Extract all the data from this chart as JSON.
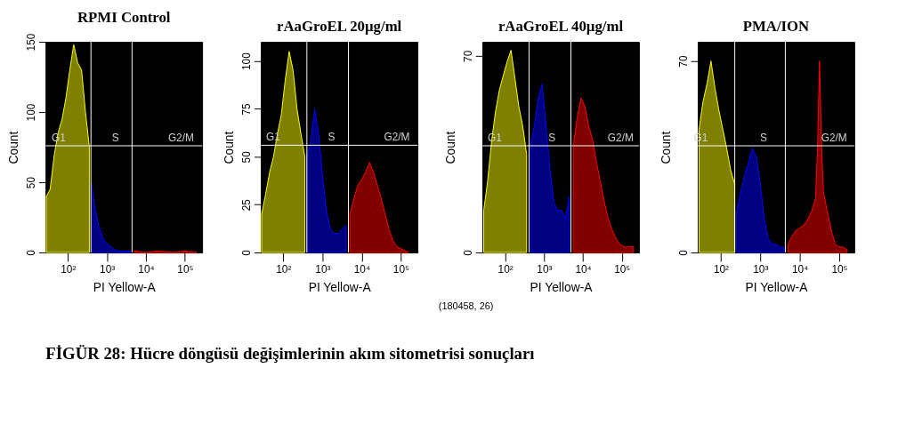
{
  "chart_data": [
    {
      "type": "area",
      "title": "RPMI Control",
      "xlabel": "PI Yellow-A",
      "ylabel": "Count",
      "log": "x",
      "grid": false,
      "annotations": [
        {
          "text": "G1",
          "x": 58,
          "y": 76
        },
        {
          "text": "S",
          "x": 1660,
          "y": 76
        },
        {
          "text": "G2/M",
          "x": 79000,
          "y": 76
        }
      ],
      "xlim": [
        27,
        275000
      ],
      "ylim": [
        0,
        150
      ],
      "xticks": [
        {
          "value": 100,
          "label": "10²"
        },
        {
          "value": 1000,
          "label": "10³"
        },
        {
          "value": 10000,
          "label": "10⁴"
        },
        {
          "value": 100000,
          "label": "10⁵"
        }
      ],
      "yticks": [
        0,
        50,
        100,
        150
      ],
      "ref_lines": [
        {
          "axis": "x",
          "value": 390,
          "color": "#ffffff"
        },
        {
          "axis": "x",
          "value": 4400,
          "color": "#ffffff"
        },
        {
          "axis": "y",
          "value": 76,
          "color": "#ffffff"
        }
      ],
      "series": [
        {
          "color": "#ffff00",
          "x": [
            28,
            35,
            45,
            56,
            71,
            89,
            112,
            141,
            178,
            224,
            282,
            355
          ],
          "values": [
            40,
            45,
            70,
            85,
            95,
            110,
            130,
            148,
            135,
            130,
            100,
            75
          ]
        },
        {
          "color": "#0000ff",
          "x": [
            398,
            501,
            631,
            794,
            1000,
            1259,
            1585,
            1995,
            2512,
            3981
          ],
          "values": [
            50,
            30,
            18,
            10,
            6,
            4,
            2,
            1,
            1,
            1
          ]
        },
        {
          "color": "#ff0000",
          "x": [
            5012,
            10000,
            20000,
            50000,
            100000,
            200000
          ],
          "values": [
            1,
            0,
            1,
            0,
            1,
            0
          ]
        }
      ]
    },
    {
      "type": "area",
      "title": "rAaGroEL 20µg/ml",
      "xlabel": "PI Yellow-A",
      "ylabel": "Count",
      "log": "x",
      "grid": false,
      "annotations": [
        {
          "text": "G1",
          "x": 55,
          "y": 56
        },
        {
          "text": "S",
          "x": 1700,
          "y": 56
        },
        {
          "text": "G2/M",
          "x": 79000,
          "y": 56
        }
      ],
      "xlim": [
        27,
        265000
      ],
      "ylim": [
        0,
        110
      ],
      "xticks": [
        {
          "value": 100,
          "label": "10²"
        },
        {
          "value": 1000,
          "label": "10³"
        },
        {
          "value": 10000,
          "label": "10⁴"
        },
        {
          "value": 100000,
          "label": "10⁵"
        }
      ],
      "yticks": [
        0,
        25,
        50,
        75,
        100
      ],
      "ref_lines": [
        {
          "axis": "x",
          "value": 400,
          "color": "#ffffff"
        },
        {
          "axis": "x",
          "value": 4600,
          "color": "#ffffff"
        },
        {
          "axis": "y",
          "value": 56,
          "color": "#ffffff"
        }
      ],
      "series": [
        {
          "color": "#ffff00",
          "x": [
            28,
            35,
            45,
            56,
            71,
            89,
            112,
            141,
            178,
            224,
            282,
            355
          ],
          "values": [
            20,
            30,
            42,
            50,
            62,
            72,
            90,
            105,
            95,
            75,
            62,
            50
          ]
        },
        {
          "color": "#0000ff",
          "x": [
            398,
            501,
            631,
            794,
            1000,
            1259,
            1585,
            1995,
            2512,
            3162,
            3981
          ],
          "values": [
            50,
            58,
            75,
            62,
            40,
            22,
            12,
            10,
            10,
            12,
            14
          ]
        },
        {
          "color": "#ff0000",
          "x": [
            5012,
            6310,
            7943,
            10000,
            12589,
            15849,
            19953,
            25119,
            31623,
            39811,
            50119,
            63096,
            79433,
            100000,
            125893,
            158489
          ],
          "values": [
            20,
            28,
            35,
            38,
            42,
            47,
            42,
            35,
            28,
            20,
            12,
            6,
            3,
            2,
            1,
            0
          ]
        }
      ]
    },
    {
      "type": "area",
      "title": "rAaGroEL 40µg/ml",
      "xlabel": "PI Yellow-A",
      "ylabel": "Count",
      "log": "x",
      "grid": false,
      "xlim": [
        26,
        275000
      ],
      "ylim": [
        0,
        75
      ],
      "xticks": [
        {
          "value": 100,
          "label": "10²"
        },
        {
          "value": 1000,
          "label": "10³"
        },
        {
          "value": 10000,
          "label": "10⁴"
        },
        {
          "value": 100000,
          "label": "10⁵"
        }
      ],
      "yticks": [
        0,
        70
      ],
      "ref_lines": [
        {
          "axis": "x",
          "value": 410,
          "color": "#ffffff"
        },
        {
          "axis": "x",
          "value": 4900,
          "color": "#ffffff"
        },
        {
          "axis": "y",
          "value": 38,
          "color": "#ffffff"
        }
      ],
      "annotations": [
        {
          "text": "G1",
          "x": 54,
          "y": 38
        },
        {
          "text": "S",
          "x": 1600,
          "y": 38
        },
        {
          "text": "G2/M",
          "x": 93000,
          "y": 38
        },
        "(180458, 26)"
      ],
      "series": [
        {
          "color": "#ffff00",
          "x": [
            28,
            35,
            45,
            56,
            71,
            89,
            112,
            141,
            178,
            224,
            282,
            355
          ],
          "values": [
            15,
            25,
            40,
            50,
            58,
            63,
            68,
            72,
            62,
            52,
            45,
            35
          ]
        },
        {
          "color": "#0000ff",
          "x": [
            447,
            562,
            708,
            891,
            1122,
            1413,
            1778,
            2239,
            2818,
            3548,
            4467
          ],
          "values": [
            38,
            45,
            55,
            60,
            45,
            30,
            18,
            15,
            15,
            12,
            20
          ]
        },
        {
          "color": "#ff0000",
          "x": [
            5623,
            7079,
            8913,
            11220,
            14125,
            17783,
            22387,
            28184,
            35481,
            44668,
            56234,
            70795,
            89125,
            112202,
            141254,
            199526
          ],
          "values": [
            38,
            48,
            55,
            52,
            45,
            40,
            32,
            25,
            18,
            12,
            8,
            5,
            3,
            2,
            2,
            2
          ]
        }
      ]
    },
    {
      "type": "area",
      "title": "PMA/ION",
      "xlabel": "PI Yellow-A",
      "ylabel": "Count",
      "log": "x",
      "grid": false,
      "annotations": [
        {
          "text": "G1",
          "x": 31,
          "y": 39
        },
        {
          "text": "S",
          "x": 1200,
          "y": 39
        },
        {
          "text": "G2/M",
          "x": 74000,
          "y": 39
        }
      ],
      "xlim": [
        26,
        240000
      ],
      "ylim": [
        0,
        77
      ],
      "xticks": [
        {
          "value": 100,
          "label": "10²"
        },
        {
          "value": 1000,
          "label": "10³"
        },
        {
          "value": 10000,
          "label": "10⁴"
        },
        {
          "value": 100000,
          "label": "10⁵"
        }
      ],
      "yticks": [
        0,
        70
      ],
      "ref_lines": [
        {
          "axis": "x",
          "value": 225,
          "color": "#ffffff"
        },
        {
          "axis": "x",
          "value": 4300,
          "color": "#ffffff"
        },
        {
          "axis": "y",
          "value": 39,
          "color": "#ffffff"
        }
      ],
      "series": [
        {
          "color": "#ffff00",
          "x": [
            28,
            35,
            45,
            56,
            71,
            89,
            112,
            141,
            178,
            224
          ],
          "values": [
            45,
            55,
            62,
            70,
            60,
            52,
            45,
            38,
            30,
            25
          ]
        },
        {
          "color": "#0000ff",
          "x": [
            251,
            316,
            398,
            501,
            631,
            794,
            1000,
            1259,
            1585,
            1995,
            2512,
            3162,
            3981
          ],
          "values": [
            15,
            22,
            28,
            33,
            38,
            35,
            25,
            12,
            5,
            3,
            3,
            2,
            2
          ]
        },
        {
          "color": "#ff0000",
          "x": [
            5012,
            6310,
            7943,
            10000,
            12589,
            15849,
            19953,
            25119,
            28184,
            31623,
            35481,
            39811,
            50119,
            63096,
            79433,
            100000,
            125893,
            158489
          ],
          "values": [
            3,
            6,
            8,
            9,
            10,
            12,
            15,
            20,
            38,
            70,
            40,
            22,
            15,
            8,
            3,
            2,
            2,
            1
          ]
        }
      ]
    },
    {
      "type": "other",
      "annotations": [
        "FİGÜR 28: Hücre döngüsü değişimlerinin akım sitometrisi sonuçları"
      ]
    }
  ]
}
